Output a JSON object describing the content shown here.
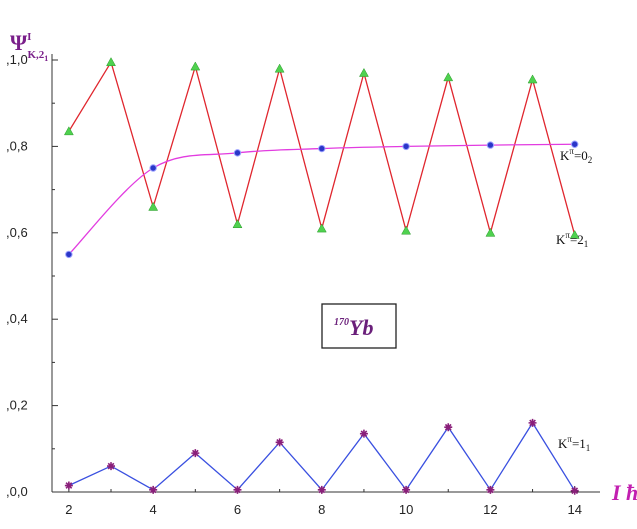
{
  "chart_data": {
    "type": "line",
    "ylabel": "Ψ",
    "ylabel_sup": "I",
    "ylabel_sub": "K,2",
    "ylabel_subsub": "1",
    "xlabel": "I ħ",
    "xlim": [
      1.6,
      14.6
    ],
    "ylim": [
      0.0,
      1.0
    ],
    "xticks": [
      "2",
      "4",
      "6",
      "8",
      "10",
      "12",
      "14"
    ],
    "yticks": [
      ",0,0",
      ",0,2",
      ",0,4",
      ",0,6",
      ",0,8",
      ",1,0"
    ],
    "ytick_values": [
      0.0,
      0.2,
      0.4,
      0.6,
      0.8,
      1.0
    ],
    "xtick_values": [
      2,
      4,
      6,
      8,
      10,
      12,
      14
    ],
    "annotation": {
      "sup": "170",
      "text": "Yb"
    },
    "series": [
      {
        "name": "K^π=2_1",
        "label_main": "K",
        "label_sup": "π",
        "label_eq": "=2",
        "label_sub": "1",
        "color": "#e0262e",
        "marker_color": "#4fd14f",
        "marker": "triangle",
        "connect": "straight",
        "x": [
          2,
          3,
          4,
          5,
          6,
          7,
          8,
          9,
          10,
          11,
          12,
          13,
          14
        ],
        "y": [
          0.835,
          0.995,
          0.66,
          0.985,
          0.62,
          0.98,
          0.61,
          0.97,
          0.605,
          0.96,
          0.6,
          0.955,
          0.595
        ]
      },
      {
        "name": "K^π=0_2",
        "label_main": "K",
        "label_sup": "π",
        "label_eq": "=0",
        "label_sub": "2",
        "color": "#e23ce0",
        "marker_color": "#2a36c8",
        "marker": "circle",
        "connect": "smooth",
        "x": [
          2,
          4,
          6,
          8,
          10,
          12,
          14
        ],
        "y": [
          0.55,
          0.75,
          0.785,
          0.795,
          0.8,
          0.803,
          0.805
        ]
      },
      {
        "name": "K^π=1_1",
        "label_main": "K",
        "label_sup": "π",
        "label_eq": "=1",
        "label_sub": "1",
        "color": "#3a50e0",
        "marker_color": "#8a1f7a",
        "marker": "star",
        "connect": "straight",
        "x": [
          2,
          3,
          4,
          5,
          6,
          7,
          8,
          9,
          10,
          11,
          12,
          13,
          14
        ],
        "y": [
          0.015,
          0.06,
          0.005,
          0.09,
          0.005,
          0.115,
          0.005,
          0.135,
          0.005,
          0.15,
          0.005,
          0.16,
          0.003
        ]
      }
    ]
  }
}
